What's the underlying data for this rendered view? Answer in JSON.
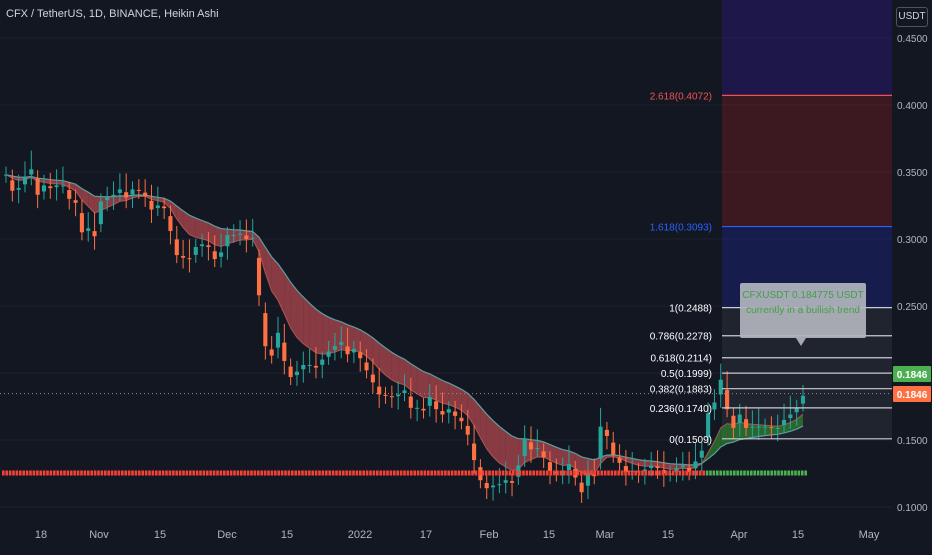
{
  "header": {
    "title": "CFX / TetherUS, 1D, BINANCE, Heikin Ashi",
    "currency": "USDT"
  },
  "annotation": {
    "line1": "CFXUSDT 0.184775 USDT",
    "line2": "currently in a bullish trend"
  },
  "colors": {
    "background": "#131722",
    "bull": "#26a69a",
    "bear": "#ff7043",
    "cloud_bear": "#b2484f",
    "cloud_bull": "#2e7d32",
    "fib_line": "#c9ccd4",
    "fib_1618": "#2962ff",
    "fib_2618": "#ef5350",
    "price_badge": "#4caf50",
    "price_badge2": "#ff7043"
  },
  "chart_data": {
    "type": "candlestick",
    "title": "CFX / TetherUS, 1D, BINANCE, Heikin Ashi",
    "ylabel": "USDT",
    "ylim": [
      0.095,
      0.46
    ],
    "yticks": [
      "0.4500",
      "0.4000",
      "0.3500",
      "0.3000",
      "0.2500",
      "0.2000",
      "0.1500",
      "0.1000"
    ],
    "xticks": [
      "18",
      "Nov",
      "15",
      "Dec",
      "15",
      "2022",
      "17",
      "Feb",
      "15",
      "Mar",
      "15",
      "Apr",
      "15",
      "May"
    ],
    "series": [
      {
        "close": [
          0.348,
          0.336,
          0.338,
          0.346,
          0.352,
          0.333,
          0.34,
          0.338,
          0.34,
          0.34,
          0.33,
          0.327,
          0.305,
          0.308,
          0.302,
          0.328,
          0.331,
          0.333,
          0.337,
          0.331,
          0.337,
          0.336,
          0.332,
          0.322,
          0.325,
          0.323,
          0.306,
          0.288,
          0.286,
          0.285,
          0.294,
          0.296,
          0.294,
          0.285,
          0.29,
          0.303,
          0.303,
          0.304,
          0.3,
          0.301,
          0.258,
          0.22,
          0.213,
          0.23,
          0.209,
          0.197,
          0.201,
          0.206,
          0.206,
          0.204,
          0.21,
          0.216,
          0.22,
          0.223,
          0.214,
          0.218,
          0.211,
          0.202,
          0.193,
          0.184,
          0.183,
          0.182,
          0.184,
          0.187,
          0.174,
          0.174,
          0.172,
          0.182,
          0.173,
          0.169,
          0.173,
          0.168,
          0.164,
          0.154,
          0.135,
          0.12,
          0.114,
          0.116,
          0.117,
          0.12,
          0.118,
          0.131,
          0.151,
          0.143,
          0.144,
          0.137,
          0.127,
          0.125,
          0.125,
          0.132,
          0.122,
          0.111,
          0.125,
          0.123,
          0.16,
          0.153,
          0.139,
          0.133,
          0.126,
          0.127,
          0.126,
          0.128,
          0.131,
          0.129,
          0.125,
          0.125,
          0.129,
          0.131,
          0.126,
          0.134,
          0.142,
          0.17,
          0.178,
          0.195,
          0.173,
          0.159,
          0.169,
          0.159,
          0.16,
          0.16,
          0.16,
          0.159,
          0.159,
          0.165,
          0.169,
          0.174,
          0.183
        ]
      }
    ],
    "fibonacci_levels": [
      {
        "label": "0(0.1509)",
        "value": 0.1509
      },
      {
        "label": "0.236(0.1740)",
        "value": 0.174
      },
      {
        "label": "0.382(0.1883)",
        "value": 0.1883
      },
      {
        "label": "0.5(0.1999)",
        "value": 0.1999
      },
      {
        "label": "0.618(0.2114)",
        "value": 0.2114
      },
      {
        "label": "0.786(0.2278)",
        "value": 0.2278
      },
      {
        "label": "1(0.2488)",
        "value": 0.2488
      },
      {
        "label": "1.618(0.3093)",
        "value": 0.3093
      },
      {
        "label": "2.618(0.4072)",
        "value": 0.4072
      }
    ],
    "last_price": [
      "0.1846",
      "0.1846"
    ],
    "legend": "none",
    "grid": true
  }
}
